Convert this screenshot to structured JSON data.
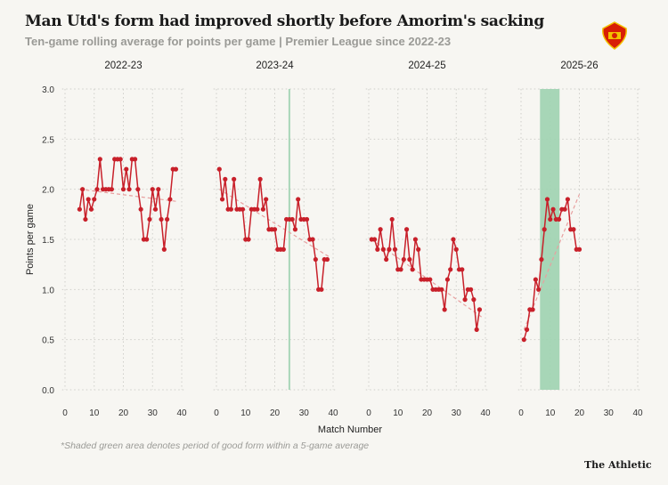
{
  "title": "Man Utd's form had improved shortly before Amorim's sacking",
  "subtitle": "Ten-game rolling average for points per game | Premier League since 2022-23",
  "note": "*Shaded green area denotes period of good form within a 5-game average",
  "brand": "The Athletic",
  "logo": "Manchester United crest",
  "colors": {
    "line": "#c8202a",
    "trend": "#e8a0a0",
    "band": "#9dd3b0",
    "background": "#f7f6f2"
  },
  "chart_data": {
    "type": "line",
    "xlabel": "Match Number",
    "ylabel": "Points per game",
    "ylim": [
      0,
      3
    ],
    "xlim": [
      0,
      40
    ],
    "yticks": [
      "0.0",
      "0.5",
      "1.0",
      "1.5",
      "2.0",
      "2.5",
      "3.0"
    ],
    "xticks": [
      "0",
      "10",
      "20",
      "30",
      "40"
    ],
    "grid": true,
    "panels": [
      {
        "season": "2022-23",
        "x_start": 5,
        "values": [
          1.8,
          2.0,
          1.7,
          1.9,
          1.8,
          1.9,
          2.0,
          2.3,
          2.0,
          2.0,
          2.0,
          2.0,
          2.3,
          2.3,
          2.3,
          2.0,
          2.2,
          2.0,
          2.3,
          2.3,
          2.0,
          1.8,
          1.5,
          1.5,
          1.7,
          2.0,
          1.8,
          2.0,
          1.7,
          1.4,
          1.7,
          1.9,
          2.2,
          2.2
        ],
        "trend": [
          [
            5,
            2.0
          ],
          [
            38,
            1.88
          ]
        ],
        "bands": []
      },
      {
        "season": "2023-24",
        "x_start": 1,
        "values": [
          2.2,
          1.9,
          2.1,
          1.8,
          1.8,
          2.1,
          1.8,
          1.8,
          1.8,
          1.5,
          1.5,
          1.8,
          1.8,
          1.8,
          2.1,
          1.8,
          1.9,
          1.6,
          1.6,
          1.6,
          1.4,
          1.4,
          1.4,
          1.7,
          1.7,
          1.7,
          1.6,
          1.9,
          1.7,
          1.7,
          1.7,
          1.5,
          1.5,
          1.3,
          1.0,
          1.0,
          1.3,
          1.3
        ],
        "trend": [
          [
            1,
            2.0
          ],
          [
            39,
            1.32
          ]
        ],
        "bands": [
          [
            24.7,
            25.3
          ]
        ]
      },
      {
        "season": "2024-25",
        "x_start": 1,
        "values": [
          1.5,
          1.5,
          1.4,
          1.6,
          1.4,
          1.3,
          1.4,
          1.7,
          1.4,
          1.2,
          1.2,
          1.3,
          1.6,
          1.3,
          1.2,
          1.5,
          1.4,
          1.1,
          1.1,
          1.1,
          1.1,
          1.0,
          1.0,
          1.0,
          1.0,
          0.8,
          1.1,
          1.2,
          1.5,
          1.4,
          1.2,
          1.2,
          0.9,
          1.0,
          1.0,
          0.9,
          0.6,
          0.8
        ],
        "trend": [
          [
            1,
            1.5
          ],
          [
            39,
            0.72
          ]
        ],
        "bands": []
      },
      {
        "season": "2025-26",
        "x_start": 1,
        "values": [
          0.5,
          0.6,
          0.8,
          0.8,
          1.1,
          1.0,
          1.3,
          1.6,
          1.9,
          1.7,
          1.8,
          1.7,
          1.7,
          1.8,
          1.8,
          1.9,
          1.6,
          1.6,
          1.4,
          1.4
        ],
        "trend": [
          [
            1,
            0.6
          ],
          [
            20,
            1.95
          ]
        ],
        "bands": [
          [
            6.5,
            13.2
          ]
        ]
      }
    ]
  }
}
